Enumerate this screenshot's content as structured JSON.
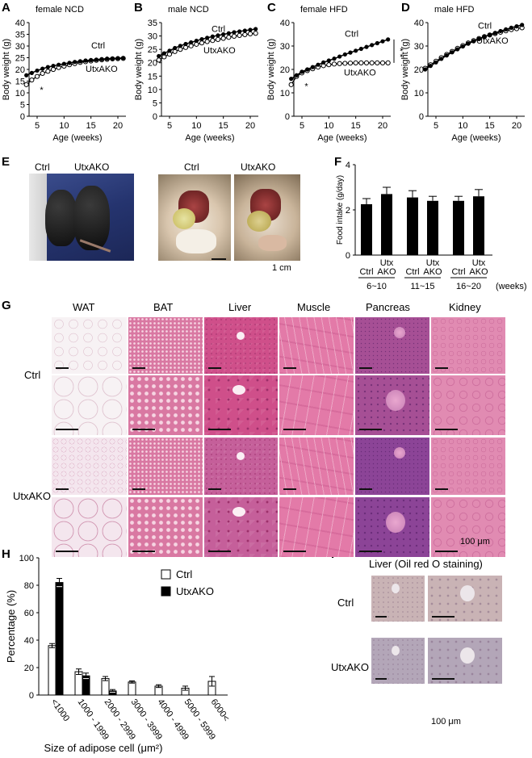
{
  "panels": {
    "A": "A",
    "B": "B",
    "C": "C",
    "D": "D",
    "E": "E",
    "F": "F",
    "G": "G",
    "H": "H",
    "I": "I"
  },
  "growth_axes": {
    "ylabel": "Body weight (g)",
    "xlabel": "Age (weeks)",
    "xticks": [
      "5",
      "10",
      "15",
      "20"
    ]
  },
  "growth_charts": [
    {
      "title": "female NCD",
      "ctrl_label": "Ctrl",
      "ko_label": "UtxAKO",
      "yticks": [
        "0",
        "5",
        "10",
        "15",
        "20",
        "25",
        "30",
        "35",
        "40"
      ],
      "ylim": [
        0,
        40
      ],
      "ctrl": [
        17.5,
        18.5,
        19.5,
        20.3,
        21,
        21.5,
        22,
        22.4,
        22.8,
        23.2,
        23.5,
        23.8,
        24,
        24.2,
        24.4,
        24.6,
        24.7,
        24.8,
        24.9
      ],
      "ko": [
        13.5,
        15.5,
        17,
        18.3,
        19.2,
        20,
        20.8,
        21.4,
        22,
        22.5,
        23,
        23.3,
        23.6,
        23.9,
        24.1,
        24.3,
        24.5,
        24.6,
        24.7
      ],
      "star": "*"
    },
    {
      "title": "male NCD",
      "ctrl_label": "Ctrl",
      "ko_label": "UtxAKO",
      "yticks": [
        "0",
        "5",
        "10",
        "15",
        "20",
        "25",
        "30",
        "35"
      ],
      "ylim": [
        0,
        35
      ],
      "ctrl": [
        22.5,
        23.5,
        24.5,
        25.5,
        26.3,
        27,
        27.6,
        28.2,
        28.8,
        29.3,
        29.8,
        30.2,
        30.6,
        31,
        31.4,
        31.7,
        32,
        32.3,
        32.6
      ],
      "ko": [
        21,
        22.2,
        23.2,
        24.2,
        25,
        25.7,
        26.3,
        26.9,
        27.4,
        27.9,
        28.3,
        28.7,
        29.1,
        29.5,
        29.9,
        30.2,
        30.5,
        30.8,
        31
      ]
    },
    {
      "title": "female HFD",
      "ctrl_label": "Ctrl",
      "ko_label": "UtxAKO",
      "yticks": [
        "0",
        "10",
        "20",
        "30",
        "40"
      ],
      "ylim": [
        0,
        40
      ],
      "ctrl": [
        16,
        17.5,
        19,
        20,
        21,
        22,
        23,
        23.8,
        24.6,
        25.5,
        26.4,
        27.2,
        28,
        28.8,
        29.6,
        30.4,
        31.2,
        32,
        32.8
      ],
      "ko": [
        13.5,
        17,
        18.5,
        19.5,
        20.3,
        21,
        21.6,
        22,
        22.3,
        22.5,
        22.6,
        22.7,
        22.8,
        22.8,
        22.8,
        22.8,
        22.8,
        22.8,
        22.8
      ],
      "star": "*",
      "sig": "* *"
    },
    {
      "title": "male HFD",
      "ctrl_label": "Ctrl",
      "ko_label": "UtxAKO",
      "yticks": [
        "0",
        "10",
        "20",
        "30",
        "40"
      ],
      "ylim": [
        0,
        40
      ],
      "ctrl": [
        20,
        21.5,
        23,
        24.5,
        26,
        27.3,
        28.6,
        29.8,
        31,
        32,
        33,
        34,
        34.8,
        35.6,
        36.4,
        37.1,
        37.8,
        38.4,
        39
      ],
      "ko": [
        20.5,
        22,
        23.5,
        25,
        26.4,
        27.7,
        29,
        30.2,
        31.3,
        32.3,
        33.2,
        34,
        34.7,
        35.3,
        35.9,
        36.5,
        37,
        37.4,
        37.8
      ]
    }
  ],
  "panelE": {
    "ctrl": "Ctrl",
    "ko": "UtxAKO",
    "ctrl2": "Ctrl",
    "ko2": "UtxAKO",
    "scale": "1 cm"
  },
  "panelF": {
    "ylabel": "Food intake  (g/day)",
    "yticks": [
      "0",
      "2",
      "4"
    ],
    "ylim": [
      0,
      4
    ],
    "bars": [
      {
        "label1": "Ctrl",
        "label2": "",
        "value": 2.25,
        "err": 0.25
      },
      {
        "label1": "Utx",
        "label2": "AKO",
        "value": 2.7,
        "err": 0.3
      },
      {
        "label1": "Ctrl",
        "label2": "",
        "value": 2.55,
        "err": 0.3
      },
      {
        "label1": "Utx",
        "label2": "AKO",
        "value": 2.4,
        "err": 0.2
      },
      {
        "label1": "Ctrl",
        "label2": "",
        "value": 2.4,
        "err": 0.2
      },
      {
        "label1": "Utx",
        "label2": "AKO",
        "value": 2.6,
        "err": 0.3
      }
    ],
    "groups": [
      "6~10",
      "11~15",
      "16~20"
    ],
    "unit": "(weeks)"
  },
  "panelG": {
    "columns": [
      "WAT",
      "BAT",
      "Liver",
      "Muscle",
      "Pancreas",
      "Kidney"
    ],
    "rows": [
      "Ctrl",
      "UtxAKO"
    ],
    "scale": "100 μm"
  },
  "panelH": {
    "ylabel": "Percentage (%)",
    "xlabel": "Size of adipose cell (μm²)",
    "yticks": [
      "0",
      "20",
      "40",
      "60",
      "80",
      "100"
    ],
    "ylim": [
      0,
      100
    ],
    "categories": [
      "<1000",
      "1000 - 1999",
      "2000 - 2999",
      "3000 - 3999",
      "4000 - 4999",
      "5000 - 5999",
      "6000<"
    ],
    "series": [
      {
        "name": "Ctrl",
        "values": [
          36,
          17,
          12,
          9.5,
          6.5,
          5,
          10
        ],
        "err": [
          1.5,
          2,
          1.5,
          0.8,
          1,
          1.5,
          3.5
        ]
      },
      {
        "name": "UtxAKO",
        "values": [
          82,
          14,
          3,
          0,
          0,
          0,
          0
        ],
        "err": [
          3,
          2,
          1,
          0,
          0,
          0,
          0
        ]
      }
    ]
  },
  "panelI": {
    "title": "Liver (Oil red O staining)",
    "rows": [
      "Ctrl",
      "UtxAKO"
    ],
    "scale": "100 μm"
  }
}
